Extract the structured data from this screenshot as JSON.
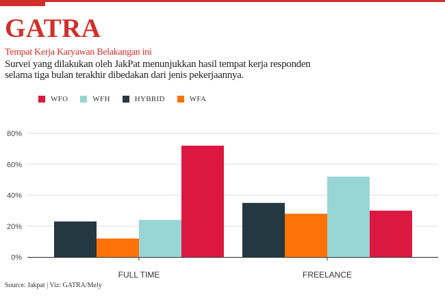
{
  "header": {
    "logo": "GATRA",
    "subtitle": "Tempat Kerja Karyawan Belakangan ini",
    "description_line1": "Survei yang dilakukan oleh JakPat menunjukkan hasil tempat kerja responden",
    "description_line2": "selama tiga bulan terakhir dibedakan dari jenis pekerjaannya."
  },
  "legend": [
    {
      "label": "WFO",
      "color": "#dc1840"
    },
    {
      "label": "WFH",
      "color": "#98d5d5"
    },
    {
      "label": "HYBRID",
      "color": "#243842"
    },
    {
      "label": "WFA",
      "color": "#fd7209"
    }
  ],
  "chart_data": {
    "type": "bar",
    "categories": [
      "FULL TIME",
      "FREELANCE"
    ],
    "y_ticks": [
      "0%",
      "20%",
      "40%",
      "60%",
      "80%"
    ],
    "ylim": [
      0,
      80
    ],
    "grid": true,
    "legend_position": "top-left",
    "xlabel": "",
    "ylabel": "",
    "series": [
      {
        "name": "WFO",
        "color": "#dc1840",
        "values": [
          72,
          30
        ]
      },
      {
        "name": "WFH",
        "color": "#98d5d5",
        "values": [
          24,
          52
        ]
      },
      {
        "name": "HYBRID",
        "color": "#243842",
        "values": [
          23,
          35
        ]
      },
      {
        "name": "WFA",
        "color": "#fd7209",
        "values": [
          12,
          28
        ]
      }
    ],
    "bar_order": [
      [
        "HYBRID",
        "WFA",
        "WFH",
        "WFO"
      ],
      [
        "HYBRID",
        "WFA",
        "WFH",
        "WFO"
      ]
    ]
  },
  "footer": {
    "source": "Source: Jakpat | Viz: GATRA/Mely"
  }
}
